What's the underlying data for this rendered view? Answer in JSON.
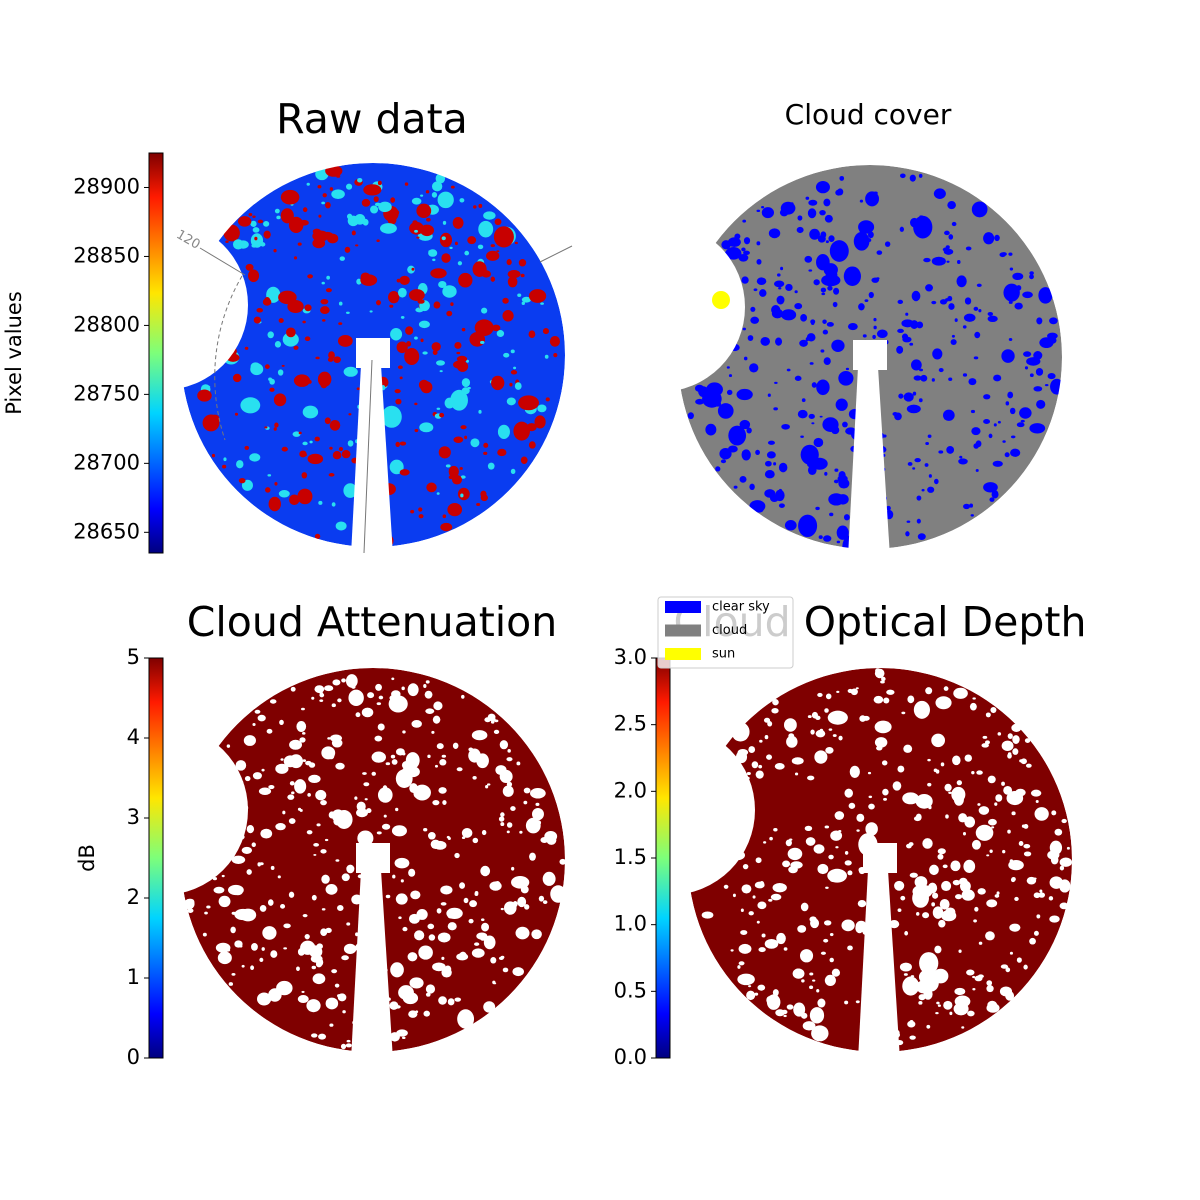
{
  "panels": [
    {
      "title": "Raw data",
      "colorbar": {
        "label": "Pixel values",
        "lim": [
          28635,
          28925
        ],
        "ticks": [
          28650,
          28700,
          28750,
          28800,
          28850,
          28900
        ]
      },
      "annotation": "120"
    },
    {
      "title": "Cloud cover",
      "legend": [
        {
          "name": "clear sky",
          "color": "#0000ff"
        },
        {
          "name": "cloud",
          "color": "#808080"
        },
        {
          "name": "sun",
          "color": "#ffff00"
        }
      ]
    },
    {
      "title": "Cloud Attenuation",
      "colorbar": {
        "label": "dB",
        "lim": [
          0,
          5
        ],
        "ticks": [
          0,
          1,
          2,
          3,
          4,
          5
        ]
      }
    },
    {
      "title": "Cloud Optical Depth",
      "colorbar": {
        "lim": [
          0,
          3
        ],
        "ticks": [
          {
            "value": 0,
            "label": "0.0"
          },
          {
            "value": 0.5,
            "label": "0.5"
          },
          {
            "value": 1,
            "label": "1.0"
          },
          {
            "value": 1.5,
            "label": "1.5"
          },
          {
            "value": 2,
            "label": "2.0"
          },
          {
            "value": 2.5,
            "label": "2.5"
          },
          {
            "value": 3,
            "label": "3.0"
          }
        ]
      }
    }
  ]
}
